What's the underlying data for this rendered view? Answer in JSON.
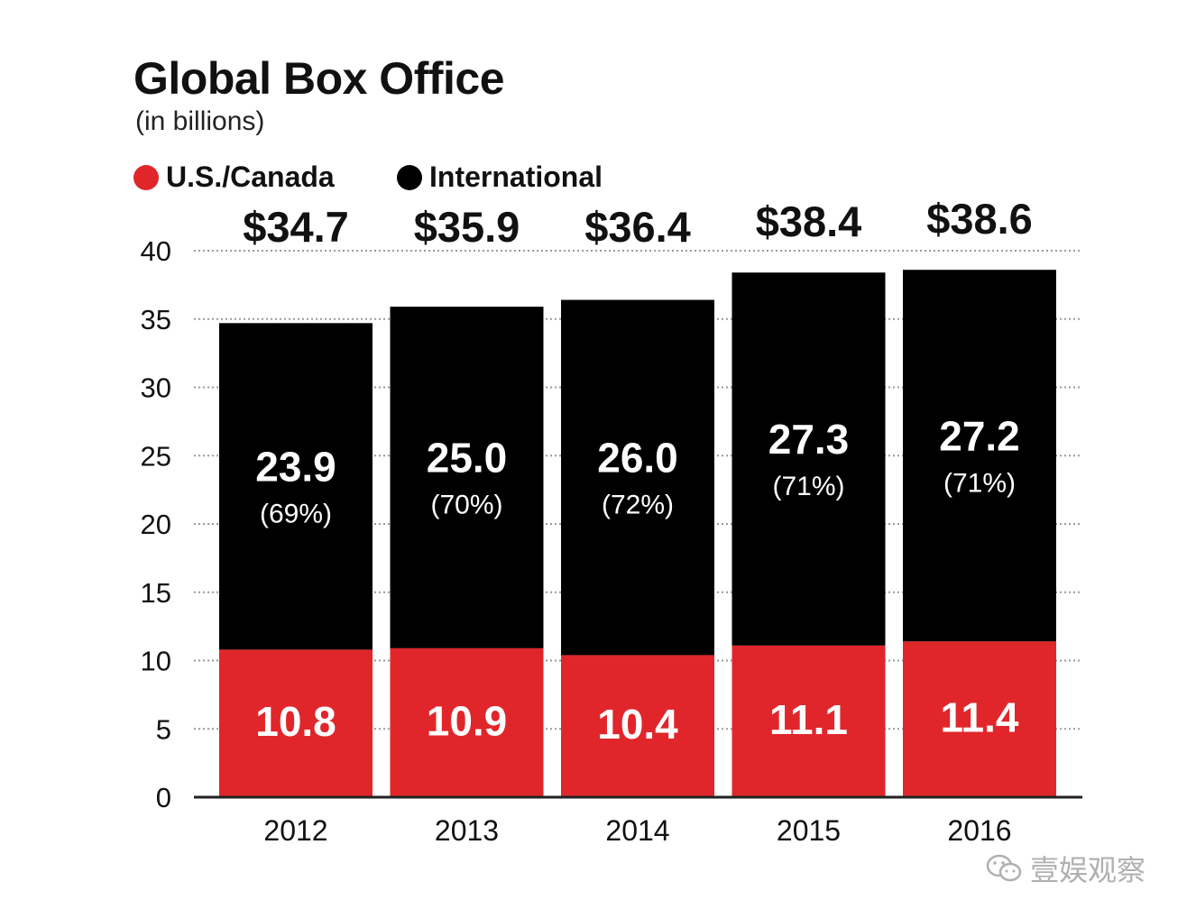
{
  "chart_data": {
    "type": "bar",
    "stacked": true,
    "title": "Global Box Office",
    "subtitle": "(in billions)",
    "categories": [
      "2012",
      "2013",
      "2014",
      "2015",
      "2016"
    ],
    "series": [
      {
        "name": "U.S./Canada",
        "color": "#e1262b",
        "values": [
          10.8,
          10.9,
          10.4,
          11.1,
          11.4
        ],
        "labels": [
          "10.8",
          "10.9",
          "10.4",
          "11.1",
          "11.4"
        ]
      },
      {
        "name": "International",
        "color": "#000000",
        "values": [
          23.9,
          25.0,
          26.0,
          27.3,
          27.2
        ],
        "labels": [
          "23.9",
          "25.0",
          "26.0",
          "27.3",
          "27.2"
        ],
        "shares": [
          "(69%)",
          "(70%)",
          "(72%)",
          "(71%)",
          "(71%)"
        ]
      }
    ],
    "totals": [
      "$34.7",
      "$35.9",
      "$36.4",
      "$38.4",
      "$38.6"
    ],
    "total_values": [
      34.7,
      35.9,
      36.4,
      38.4,
      38.6
    ],
    "ylim": [
      0,
      40
    ],
    "yticks": [
      "0",
      "5",
      "10",
      "15",
      "20",
      "25",
      "30",
      "35",
      "40"
    ],
    "grid": true,
    "legend_position": "top-left"
  },
  "watermark": "壹娱观察"
}
